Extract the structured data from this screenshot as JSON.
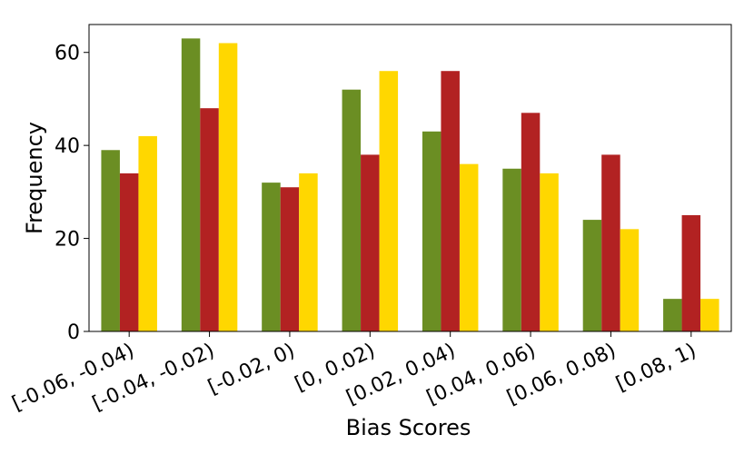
{
  "chart_data": {
    "type": "bar",
    "title": "",
    "xlabel": "Bias Scores",
    "ylabel": "Frequency",
    "categories": [
      "[-0.06, -0.04)",
      "[-0.04, -0.02)",
      "[-0.02, 0)",
      "[0, 0.02)",
      "[0.02, 0.04)",
      "[0.04, 0.06)",
      "[0.06, 0.08)",
      "[0.08, 1)"
    ],
    "series": [
      {
        "color": "#6b8e23",
        "values": [
          39,
          63,
          32,
          52,
          43,
          35,
          24,
          7
        ]
      },
      {
        "color": "#b22222",
        "values": [
          34,
          48,
          31,
          38,
          56,
          47,
          38,
          25
        ]
      },
      {
        "color": "#ffd700",
        "values": [
          42,
          62,
          34,
          56,
          36,
          34,
          22,
          7
        ]
      }
    ],
    "ylim": [
      0,
      66
    ],
    "yticks": [
      0,
      20,
      40,
      60
    ],
    "grid": false,
    "legend": "none"
  }
}
